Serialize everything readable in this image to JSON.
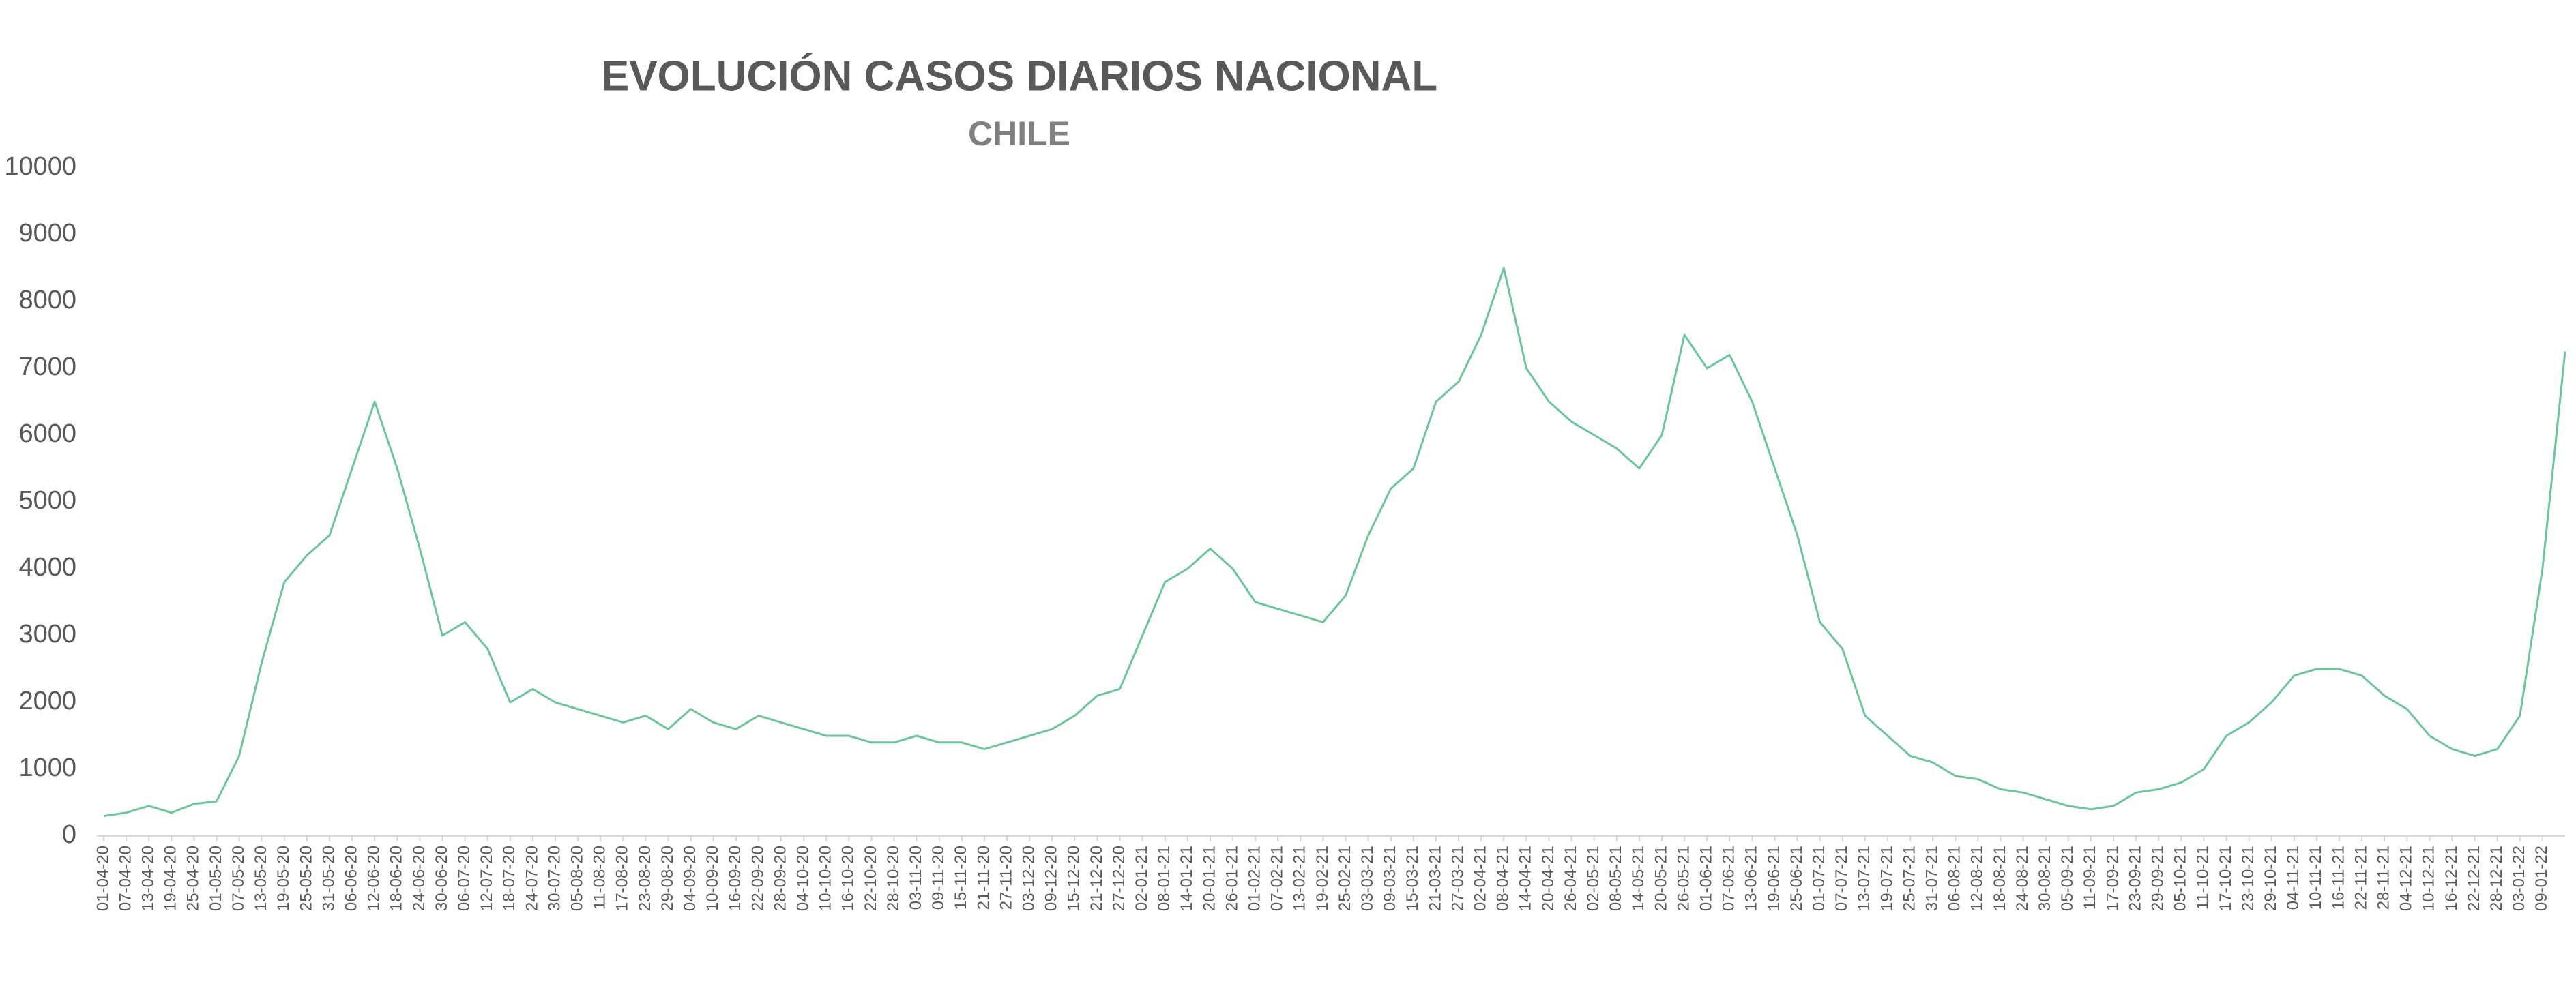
{
  "chart_data": {
    "type": "line",
    "title": "EVOLUCIÓN CASOS DIARIOS NACIONAL",
    "subtitle": "CHILE",
    "categories": [
      "01-04-20",
      "07-04-20",
      "13-04-20",
      "19-04-20",
      "25-04-20",
      "01-05-20",
      "07-05-20",
      "13-05-20",
      "19-05-20",
      "25-05-20",
      "31-05-20",
      "06-06-20",
      "12-06-20",
      "18-06-20",
      "24-06-20",
      "30-06-20",
      "06-07-20",
      "12-07-20",
      "18-07-20",
      "24-07-20",
      "30-07-20",
      "05-08-20",
      "11-08-20",
      "17-08-20",
      "23-08-20",
      "29-08-20",
      "04-09-20",
      "10-09-20",
      "16-09-20",
      "22-09-20",
      "28-09-20",
      "04-10-20",
      "10-10-20",
      "16-10-20",
      "22-10-20",
      "28-10-20",
      "03-11-20",
      "09-11-20",
      "15-11-20",
      "21-11-20",
      "27-11-20",
      "03-12-20",
      "09-12-20",
      "15-12-20",
      "21-12-20",
      "27-12-20",
      "02-01-21",
      "08-01-21",
      "14-01-21",
      "20-01-21",
      "26-01-21",
      "01-02-21",
      "07-02-21",
      "13-02-21",
      "19-02-21",
      "25-02-21",
      "03-03-21",
      "09-03-21",
      "15-03-21",
      "21-03-21",
      "27-03-21",
      "02-04-21",
      "08-04-21",
      "14-04-21",
      "20-04-21",
      "26-04-21",
      "02-05-21",
      "08-05-21",
      "14-05-21",
      "20-05-21",
      "26-05-21",
      "01-06-21",
      "07-06-21",
      "13-06-21",
      "19-06-21",
      "25-06-21",
      "01-07-21",
      "07-07-21",
      "13-07-21",
      "19-07-21",
      "25-07-21",
      "31-07-21",
      "06-08-21",
      "12-08-21",
      "18-08-21",
      "24-08-21",
      "30-08-21",
      "05-09-21",
      "11-09-21",
      "17-09-21",
      "23-09-21",
      "29-09-21",
      "05-10-21",
      "11-10-21",
      "17-10-21",
      "23-10-21",
      "29-10-21",
      "04-11-21",
      "10-11-21",
      "16-11-21",
      "22-11-21",
      "28-11-21",
      "04-12-21",
      "10-12-21",
      "16-12-21",
      "22-12-21",
      "28-12-21",
      "03-01-22",
      "09-01-22",
      null
    ],
    "values": [
      300,
      350,
      450,
      350,
      480,
      520,
      1200,
      2600,
      3800,
      4200,
      4500,
      5500,
      6500,
      5500,
      4300,
      3000,
      3200,
      2800,
      2000,
      2200,
      2000,
      1900,
      1800,
      1700,
      1800,
      1600,
      1900,
      1700,
      1600,
      1800,
      1700,
      1600,
      1500,
      1500,
      1400,
      1400,
      1500,
      1400,
      1400,
      1300,
      1400,
      1500,
      1600,
      1800,
      2100,
      2200,
      3000,
      3800,
      4000,
      4300,
      4000,
      3500,
      3400,
      3300,
      3200,
      3600,
      4500,
      5200,
      5500,
      6500,
      6800,
      7500,
      8500,
      7000,
      6500,
      6200,
      6000,
      5800,
      5500,
      6000,
      7500,
      7000,
      7200,
      6500,
      5500,
      4500,
      3200,
      2800,
      1800,
      1500,
      1200,
      1100,
      900,
      850,
      700,
      650,
      550,
      450,
      400,
      450,
      650,
      700,
      800,
      1000,
      1500,
      1700,
      2000,
      2400,
      2500,
      2500,
      2400,
      2100,
      1900,
      1500,
      1300,
      1200,
      1300,
      1800,
      4000,
      7250
    ],
    "color": "#6cc69b",
    "ylim": [
      0,
      10000
    ],
    "yticks": [
      0,
      1000,
      2000,
      3000,
      4000,
      5000,
      6000,
      7000,
      8000,
      9000,
      10000
    ],
    "grid": false
  }
}
